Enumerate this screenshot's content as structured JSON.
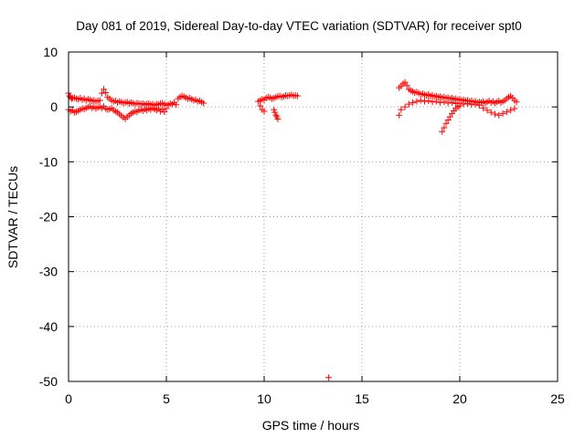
{
  "chart_data": {
    "type": "scatter",
    "title": "Day 081 of 2019, Sidereal Day-to-day VTEC variation (SDTVAR) for receiver spt0",
    "xlabel": "GPS time / hours",
    "ylabel": "SDTVAR / TECUs",
    "xlim": [
      0,
      25
    ],
    "ylim": [
      -50,
      10
    ],
    "xticks": [
      "0",
      "5",
      "10",
      "15",
      "20",
      "25"
    ],
    "yticks": [
      "10",
      "0",
      "-10",
      "-20",
      "-30",
      "-40",
      "-50"
    ],
    "grid": true,
    "marker": "+",
    "color": "#ff0000",
    "series": [
      {
        "x": [
          0.0,
          0.05,
          0.1,
          0.15,
          0.2,
          0.3,
          0.4,
          0.5,
          0.6,
          0.7,
          0.8,
          0.9,
          1.0,
          1.1,
          1.2,
          1.3,
          1.4,
          1.5,
          1.6,
          1.7,
          1.8,
          1.9,
          2.0,
          2.1,
          2.2,
          2.3,
          2.4,
          2.5,
          2.6,
          2.7,
          2.8,
          2.9,
          3.0,
          3.1,
          3.2,
          3.3,
          3.4,
          3.5,
          3.6,
          3.7,
          3.8,
          3.9,
          4.0,
          4.1,
          4.2,
          4.3,
          4.4,
          4.5,
          4.6,
          4.7,
          4.8,
          4.9,
          5.0,
          5.1,
          5.2,
          5.3,
          5.4,
          5.5
        ],
        "y": [
          2.5,
          2.0,
          1.8,
          1.5,
          1.6,
          1.7,
          1.5,
          1.4,
          1.6,
          1.3,
          1.5,
          1.2,
          1.4,
          1.3,
          1.1,
          1.2,
          1.0,
          1.1,
          1.2,
          2.5,
          3.2,
          2.6,
          1.8,
          1.5,
          1.2,
          1.0,
          1.1,
          0.8,
          1.0,
          0.9,
          0.7,
          0.8,
          0.9,
          0.6,
          0.8,
          0.7,
          0.5,
          0.7,
          0.6,
          0.5,
          0.6,
          0.4,
          0.5,
          0.6,
          0.4,
          0.5,
          0.3,
          0.5,
          0.4,
          0.6,
          0.7,
          0.5,
          0.3,
          0.4,
          0.6,
          0.5,
          0.8,
          0.4
        ]
      },
      {
        "x": [
          0.0,
          0.1,
          0.2,
          0.3,
          0.4,
          0.5,
          0.6,
          0.7,
          0.8,
          0.9,
          1.0,
          1.1,
          1.2,
          1.3,
          1.4,
          1.5,
          1.6,
          1.7,
          1.8,
          1.9,
          2.0,
          2.1,
          2.2,
          2.3,
          2.4,
          2.5,
          2.6,
          2.7,
          2.8,
          2.9,
          3.0,
          3.1,
          3.2,
          3.3,
          3.4,
          3.5,
          3.6,
          3.7,
          3.8,
          3.9,
          4.0,
          4.1,
          4.2,
          4.3,
          4.4,
          4.5,
          4.6,
          4.7,
          4.8,
          4.9,
          5.0
        ],
        "y": [
          -0.5,
          -0.8,
          -0.6,
          -1.0,
          -0.9,
          -0.7,
          -0.5,
          -0.3,
          -0.4,
          -0.2,
          0.0,
          0.1,
          -0.2,
          0.0,
          -0.3,
          -0.1,
          0.0,
          -0.2,
          0.1,
          -0.3,
          -0.5,
          -0.4,
          -0.2,
          -0.6,
          -0.8,
          -1.0,
          -1.3,
          -1.6,
          -1.9,
          -2.2,
          -1.8,
          -1.5,
          -1.2,
          -1.0,
          -0.8,
          -0.9,
          -0.6,
          -0.5,
          -0.7,
          -0.4,
          -0.6,
          -0.3,
          -0.5,
          -0.2,
          -0.4,
          -0.6,
          -0.3,
          -0.8,
          -0.5,
          -0.9,
          -0.3
        ]
      },
      {
        "x": [
          5.6,
          5.7,
          5.8,
          5.9,
          6.0,
          6.1,
          6.2,
          6.3,
          6.4,
          6.5,
          6.6,
          6.7,
          6.8,
          6.9
        ],
        "y": [
          1.5,
          1.8,
          2.0,
          1.9,
          1.7,
          1.5,
          1.6,
          1.4,
          1.2,
          1.3,
          1.0,
          1.1,
          0.9,
          0.7
        ]
      },
      {
        "x": [
          9.7,
          9.8,
          9.9,
          10.0,
          10.1,
          10.2,
          10.3,
          10.4,
          10.5,
          10.6,
          10.7,
          10.8,
          10.9,
          11.0,
          11.1,
          11.2,
          11.3,
          11.4,
          11.5,
          11.6,
          11.7
        ],
        "y": [
          1.0,
          1.2,
          1.4,
          1.3,
          1.6,
          1.8,
          1.7,
          1.5,
          1.6,
          1.8,
          1.9,
          2.0,
          1.8,
          1.9,
          2.1,
          2.0,
          2.1,
          2.2,
          2.0,
          2.1,
          2.0
        ]
      },
      {
        "x": [
          9.8,
          9.9,
          10.0,
          10.5,
          10.55,
          10.6,
          10.65,
          10.7
        ],
        "y": [
          0.2,
          -0.5,
          -0.8,
          -0.5,
          -1.0,
          -1.5,
          -1.8,
          -2.2
        ]
      },
      {
        "x": [
          13.3
        ],
        "y": [
          -49.3
        ]
      },
      {
        "x": [
          16.9,
          17.0,
          17.1,
          17.2,
          17.3,
          17.4,
          17.5,
          17.6,
          17.7,
          17.8,
          17.9,
          18.0,
          18.1,
          18.2,
          18.3,
          18.4,
          18.5,
          18.6,
          18.7,
          18.8,
          18.9,
          19.0,
          19.1,
          19.2,
          19.3,
          19.4,
          19.5,
          19.6,
          19.7,
          19.8,
          19.9,
          20.0,
          20.1,
          20.2,
          20.3,
          20.4,
          20.5,
          20.6,
          20.7,
          20.8,
          20.9,
          21.0,
          21.1,
          21.2,
          21.3,
          21.4,
          21.5,
          21.6,
          21.7,
          21.8,
          21.9,
          22.0,
          22.1,
          22.2,
          22.3,
          22.4,
          22.5,
          22.6,
          22.7,
          22.8,
          22.9
        ],
        "y": [
          3.5,
          3.8,
          4.2,
          4.5,
          3.9,
          3.2,
          3.0,
          2.8,
          2.6,
          2.7,
          2.5,
          2.3,
          2.4,
          2.2,
          2.1,
          2.3,
          2.0,
          2.1,
          1.9,
          2.0,
          1.8,
          1.9,
          1.7,
          1.8,
          1.6,
          1.7,
          1.5,
          1.6,
          1.4,
          1.5,
          1.3,
          1.4,
          1.2,
          1.3,
          1.1,
          1.2,
          1.0,
          1.1,
          0.9,
          1.0,
          0.8,
          0.9,
          0.8,
          1.0,
          0.7,
          0.9,
          1.1,
          0.8,
          1.0,
          0.7,
          0.9,
          1.1,
          0.8,
          1.0,
          1.2,
          1.5,
          1.8,
          2.0,
          1.6,
          1.2,
          0.9
        ]
      },
      {
        "x": [
          16.9,
          17.0,
          17.2,
          17.4,
          17.6,
          17.8,
          18.0,
          18.2,
          18.4,
          18.6,
          18.8,
          19.0,
          19.2,
          19.4,
          19.6,
          19.8,
          20.0,
          20.2,
          20.4,
          20.6,
          20.8,
          21.0,
          21.2,
          21.4,
          21.6,
          21.8,
          22.0,
          22.2,
          22.4,
          22.6,
          22.8
        ],
        "y": [
          -1.5,
          -0.5,
          0.0,
          0.5,
          0.8,
          1.0,
          1.2,
          1.0,
          1.1,
          0.9,
          1.0,
          0.8,
          0.9,
          0.7,
          0.8,
          0.6,
          0.7,
          0.5,
          0.6,
          0.4,
          0.5,
          0.3,
          -0.2,
          -0.6,
          -1.0,
          -1.3,
          -1.5,
          -1.2,
          -0.9,
          -0.6,
          -0.3
        ]
      },
      {
        "x": [
          19.1,
          19.2,
          19.3,
          19.4,
          19.5,
          19.6,
          19.7,
          19.8,
          19.9,
          20.0
        ],
        "y": [
          -4.5,
          -3.8,
          -3.0,
          -2.4,
          -1.8,
          -1.2,
          -0.7,
          -0.3,
          0.0,
          0.2
        ]
      }
    ]
  }
}
